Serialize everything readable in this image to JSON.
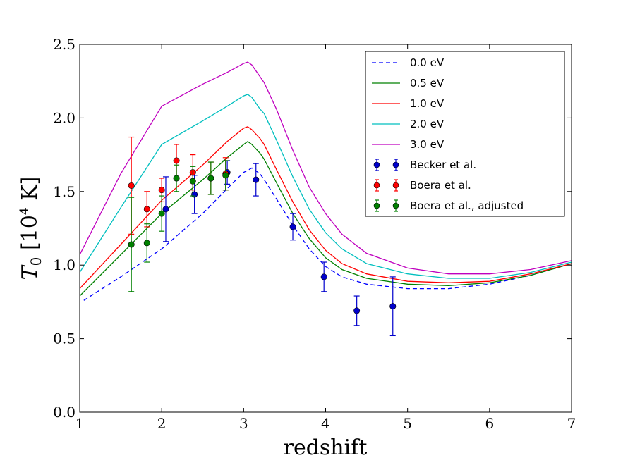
{
  "chart_data": {
    "type": "line",
    "title": "",
    "xlabel": "redshift",
    "ylabel": "T0 [10^4 K]",
    "ylabel_main": "T",
    "ylabel_sub": "0",
    "ylabel_open": " [10",
    "ylabel_sup": "4",
    "ylabel_close": " K]",
    "xlim": [
      1,
      7
    ],
    "ylim": [
      0.0,
      2.5
    ],
    "xticks": [
      1,
      2,
      3,
      4,
      5,
      6,
      7
    ],
    "yticks": [
      0.0,
      0.5,
      1.0,
      1.5,
      2.0,
      2.5
    ],
    "xtick_labels": [
      "1",
      "2",
      "3",
      "4",
      "5",
      "6",
      "7"
    ],
    "ytick_labels": [
      "0.0",
      "0.5",
      "1.0",
      "1.5",
      "2.0",
      "2.5"
    ],
    "grid": false,
    "legend_position": "top-right",
    "series": [
      {
        "name": "0.0 eV",
        "legend_label": "0.0 eV",
        "color": "#0000ff",
        "style": "dashed",
        "x": [
          1.05,
          1.5,
          2.0,
          2.5,
          2.8,
          3.0,
          3.1,
          3.2,
          3.25,
          3.4,
          3.6,
          3.8,
          4.0,
          4.2,
          4.5,
          5.0,
          5.5,
          6.0,
          6.5,
          7.0
        ],
        "y": [
          0.76,
          0.92,
          1.11,
          1.35,
          1.52,
          1.63,
          1.66,
          1.62,
          1.58,
          1.45,
          1.27,
          1.11,
          0.99,
          0.92,
          0.87,
          0.84,
          0.84,
          0.87,
          0.93,
          1.01
        ]
      },
      {
        "name": "0.5 eV",
        "legend_label": "0.5 eV",
        "color": "#008000",
        "style": "solid",
        "x": [
          1.0,
          1.5,
          2.0,
          2.5,
          2.8,
          3.0,
          3.05,
          3.1,
          3.2,
          3.25,
          3.4,
          3.6,
          3.8,
          4.0,
          4.2,
          4.5,
          5.0,
          5.5,
          6.0,
          6.5,
          7.0
        ],
        "y": [
          0.79,
          1.07,
          1.35,
          1.58,
          1.73,
          1.82,
          1.84,
          1.82,
          1.76,
          1.72,
          1.56,
          1.35,
          1.18,
          1.05,
          0.97,
          0.91,
          0.87,
          0.86,
          0.88,
          0.93,
          1.01
        ]
      },
      {
        "name": "1.0 eV",
        "legend_label": "1.0 eV",
        "color": "#ff0000",
        "style": "solid",
        "x": [
          1.0,
          1.5,
          2.0,
          2.5,
          2.8,
          3.0,
          3.05,
          3.1,
          3.2,
          3.25,
          3.4,
          3.6,
          3.8,
          4.0,
          4.2,
          4.5,
          5.0,
          5.5,
          6.0,
          6.5,
          7.0
        ],
        "y": [
          0.84,
          1.14,
          1.44,
          1.68,
          1.84,
          1.93,
          1.94,
          1.92,
          1.86,
          1.82,
          1.65,
          1.43,
          1.24,
          1.1,
          1.01,
          0.94,
          0.89,
          0.88,
          0.89,
          0.94,
          1.01
        ]
      },
      {
        "name": "2.0 eV",
        "legend_label": "2.0 eV",
        "color": "#00bfbf",
        "style": "solid",
        "x": [
          1.0,
          1.5,
          2.0,
          2.5,
          2.8,
          3.0,
          3.05,
          3.1,
          3.2,
          3.25,
          3.4,
          3.6,
          3.8,
          4.0,
          4.2,
          4.5,
          5.0,
          5.5,
          6.0,
          6.5,
          7.0
        ],
        "y": [
          0.95,
          1.39,
          1.82,
          1.98,
          2.08,
          2.15,
          2.16,
          2.14,
          2.06,
          2.03,
          1.85,
          1.6,
          1.38,
          1.22,
          1.11,
          1.01,
          0.94,
          0.91,
          0.91,
          0.95,
          1.02
        ]
      },
      {
        "name": "3.0 eV",
        "legend_label": "3.0 eV",
        "color": "#bf00bf",
        "style": "solid",
        "x": [
          1.0,
          1.5,
          2.0,
          2.5,
          2.8,
          3.0,
          3.05,
          3.1,
          3.2,
          3.25,
          3.4,
          3.6,
          3.8,
          4.0,
          4.2,
          4.5,
          5.0,
          5.5,
          6.0,
          6.5,
          7.0
        ],
        "y": [
          1.07,
          1.62,
          2.08,
          2.23,
          2.31,
          2.37,
          2.38,
          2.36,
          2.28,
          2.24,
          2.06,
          1.78,
          1.53,
          1.35,
          1.21,
          1.08,
          0.98,
          0.94,
          0.94,
          0.97,
          1.03
        ]
      }
    ],
    "points": [
      {
        "name": "Becker et al.",
        "legend_label": "Becker et al.",
        "color": "#0000cc",
        "marker": "circle",
        "x": [
          2.05,
          2.4,
          2.8,
          3.15,
          3.6,
          3.98,
          4.38,
          4.82
        ],
        "y": [
          1.38,
          1.48,
          1.63,
          1.58,
          1.26,
          0.92,
          0.69,
          0.72
        ],
        "yerr": [
          0.22,
          0.13,
          0.08,
          0.11,
          0.09,
          0.1,
          0.1,
          0.2
        ]
      },
      {
        "name": "Boera et al.",
        "legend_label": "Boera et al.",
        "color": "#ff0000",
        "marker": "circle",
        "x": [
          1.63,
          1.82,
          2.0,
          2.18,
          2.38,
          2.6,
          2.78
        ],
        "y": [
          1.54,
          1.38,
          1.51,
          1.71,
          1.63,
          1.59,
          1.62
        ],
        "yerr": [
          0.33,
          0.12,
          0.08,
          0.11,
          0.12,
          0.11,
          0.11
        ]
      },
      {
        "name": "Boera et al., adjusted",
        "legend_label": "Boera et al., adjusted",
        "color": "#008000",
        "marker": "circle",
        "x": [
          1.63,
          1.82,
          2.0,
          2.18,
          2.38,
          2.6,
          2.78
        ],
        "y": [
          1.14,
          1.15,
          1.35,
          1.59,
          1.57,
          1.59,
          1.61
        ],
        "yerr": [
          0.32,
          0.13,
          0.12,
          0.09,
          0.1,
          0.11,
          0.1
        ]
      }
    ]
  }
}
